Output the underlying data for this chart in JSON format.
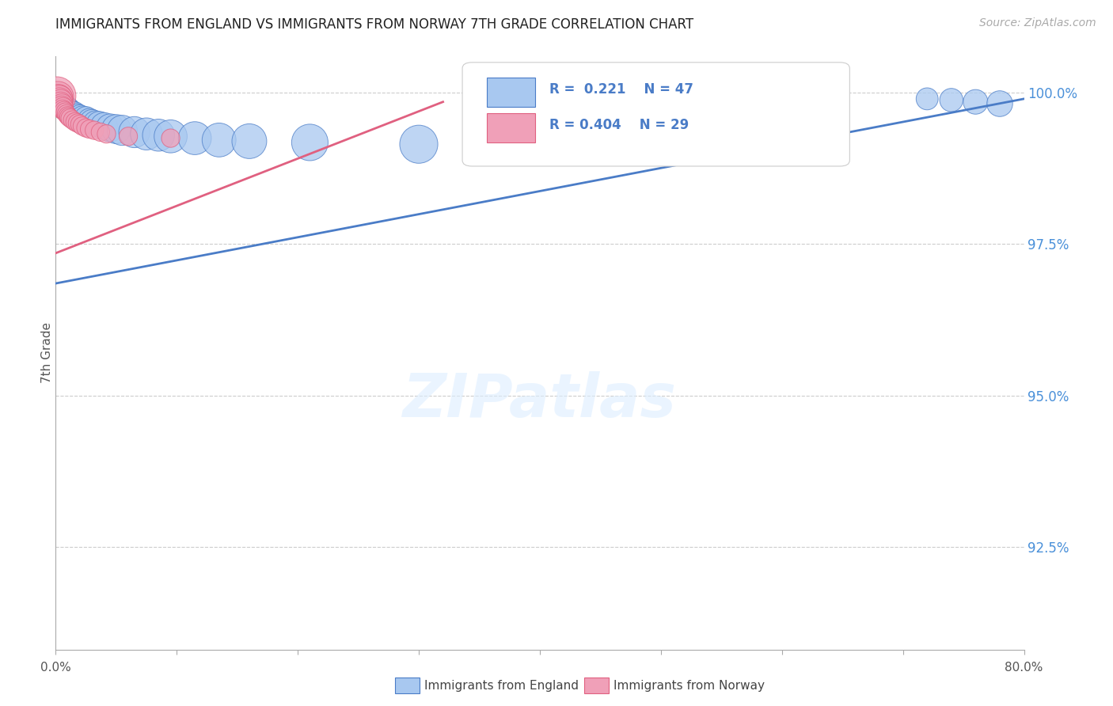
{
  "title": "IMMIGRANTS FROM ENGLAND VS IMMIGRANTS FROM NORWAY 7TH GRADE CORRELATION CHART",
  "source": "Source: ZipAtlas.com",
  "ylabel": "7th Grade",
  "england_R": 0.221,
  "england_N": 47,
  "norway_R": 0.404,
  "norway_N": 29,
  "england_color": "#a8c8f0",
  "norway_color": "#f0a0b8",
  "england_edge_color": "#4a7cc7",
  "norway_edge_color": "#e06080",
  "england_line_color": "#4a7cc7",
  "norway_line_color": "#e06080",
  "legend_label_england": "Immigrants from England",
  "legend_label_norway": "Immigrants from Norway",
  "xlim": [
    0.0,
    0.8
  ],
  "ylim": [
    0.908,
    1.006
  ],
  "ytick_values": [
    1.0,
    0.975,
    0.95,
    0.925
  ],
  "ytick_labels": [
    "100.0%",
    "97.5%",
    "95.0%",
    "92.5%"
  ],
  "england_line_x": [
    0.0,
    0.8
  ],
  "england_line_y": [
    0.9685,
    0.999
  ],
  "norway_line_x": [
    0.0,
    0.32
  ],
  "norway_line_y": [
    0.9735,
    0.9985
  ],
  "england_scatter": {
    "x": [
      0.001,
      0.002,
      0.003,
      0.003,
      0.004,
      0.004,
      0.005,
      0.005,
      0.006,
      0.006,
      0.007,
      0.007,
      0.008,
      0.008,
      0.009,
      0.009,
      0.01,
      0.011,
      0.012,
      0.013,
      0.014,
      0.016,
      0.018,
      0.02,
      0.022,
      0.025,
      0.028,
      0.03,
      0.033,
      0.036,
      0.04,
      0.045,
      0.05,
      0.055,
      0.065,
      0.075,
      0.085,
      0.095,
      0.115,
      0.135,
      0.16,
      0.21,
      0.3,
      0.72,
      0.74,
      0.76,
      0.78
    ],
    "y": [
      0.9995,
      0.9992,
      0.999,
      0.9988,
      0.999,
      0.9985,
      0.9988,
      0.9983,
      0.9987,
      0.9982,
      0.9985,
      0.998,
      0.9983,
      0.9978,
      0.9982,
      0.9975,
      0.998,
      0.9978,
      0.9975,
      0.9972,
      0.997,
      0.9968,
      0.9965,
      0.9962,
      0.996,
      0.9958,
      0.9955,
      0.9952,
      0.995,
      0.9948,
      0.9945,
      0.9942,
      0.994,
      0.9938,
      0.9935,
      0.9932,
      0.993,
      0.9928,
      0.9925,
      0.9922,
      0.992,
      0.9918,
      0.9915,
      0.999,
      0.9988,
      0.9985,
      0.9982
    ],
    "sizes": [
      25,
      25,
      25,
      25,
      25,
      25,
      25,
      25,
      25,
      25,
      25,
      25,
      25,
      25,
      25,
      25,
      25,
      25,
      30,
      30,
      30,
      35,
      35,
      40,
      40,
      45,
      45,
      50,
      50,
      55,
      60,
      65,
      70,
      75,
      80,
      85,
      85,
      90,
      90,
      95,
      100,
      110,
      120,
      40,
      45,
      50,
      55
    ]
  },
  "norway_scatter": {
    "x": [
      0.001,
      0.002,
      0.002,
      0.003,
      0.003,
      0.004,
      0.004,
      0.005,
      0.005,
      0.006,
      0.006,
      0.007,
      0.008,
      0.009,
      0.01,
      0.011,
      0.012,
      0.014,
      0.016,
      0.018,
      0.02,
      0.022,
      0.025,
      0.028,
      0.032,
      0.037,
      0.042,
      0.06,
      0.095
    ],
    "y": [
      0.9995,
      0.9993,
      0.999,
      0.999,
      0.9987,
      0.9985,
      0.9982,
      0.998,
      0.9977,
      0.9975,
      0.9972,
      0.997,
      0.9968,
      0.9965,
      0.9962,
      0.996,
      0.9958,
      0.9955,
      0.9952,
      0.995,
      0.9948,
      0.9945,
      0.9942,
      0.994,
      0.9938,
      0.9935,
      0.9932,
      0.9928,
      0.9925
    ],
    "sizes": [
      120,
      80,
      70,
      60,
      55,
      50,
      45,
      40,
      38,
      35,
      32,
      30,
      28,
      28,
      28,
      28,
      28,
      28,
      28,
      28,
      28,
      28,
      28,
      28,
      28,
      28,
      28,
      28,
      28
    ]
  }
}
